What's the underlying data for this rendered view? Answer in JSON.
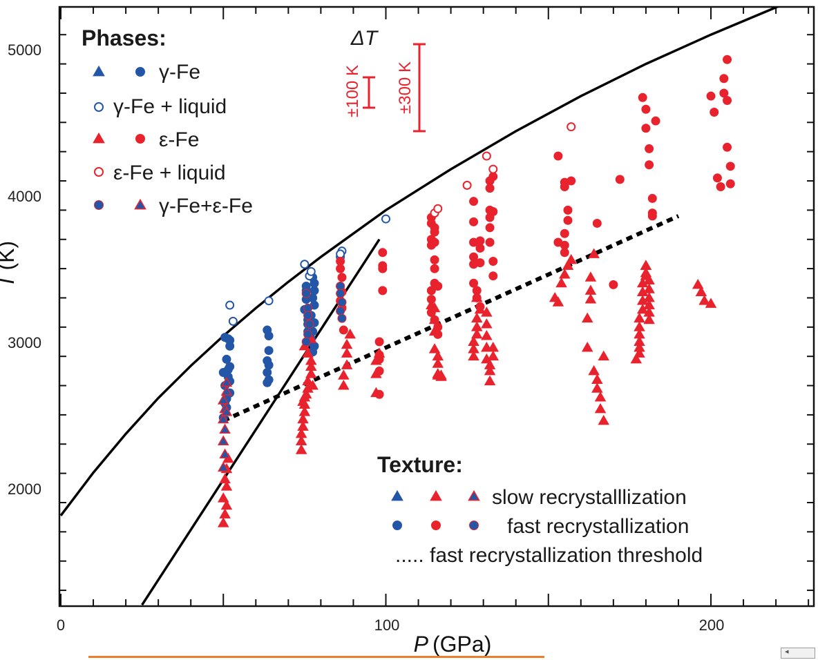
{
  "chart_data": {
    "type": "scatter",
    "xlabel": "P",
    "xlabel_unit": "(GPa)",
    "ylabel": "T",
    "ylabel_unit": "(K)",
    "xlim": [
      0,
      230
    ],
    "ylim": [
      1200,
      5300
    ],
    "x_ticks": [
      "0",
      "100",
      "200"
    ],
    "y_ticks": [
      "2000",
      "3000",
      "4000",
      "5000"
    ],
    "colors": {
      "gamma": "#2456a8",
      "epsilon": "#e8232d",
      "line": "#000000"
    },
    "legend_phases": {
      "title": "Phases:",
      "entries": [
        "γ-Fe",
        "γ-Fe + liquid",
        "ε-Fe",
        "ε-Fe + liquid",
        "γ-Fe+ε-Fe"
      ]
    },
    "legend_texture": {
      "title": "Texture:",
      "slow": "slow recrystalllization",
      "fast": "fast recrystallization",
      "threshold": "..... fast recrystallization threshold"
    },
    "error_bars": {
      "label": "ΔT",
      "small": "±100 K",
      "large": "±300 K"
    },
    "melting_curve": [
      [
        0,
        1811
      ],
      [
        10,
        2105
      ],
      [
        20,
        2370
      ],
      [
        30,
        2615
      ],
      [
        40,
        2835
      ],
      [
        50,
        3040
      ],
      [
        60,
        3230
      ],
      [
        70,
        3410
      ],
      [
        80,
        3580
      ],
      [
        90,
        3740
      ],
      [
        100,
        3900
      ],
      [
        120,
        4180
      ],
      [
        140,
        4440
      ],
      [
        160,
        4680
      ],
      [
        180,
        4900
      ],
      [
        200,
        5100
      ],
      [
        230,
        5380
      ]
    ],
    "gamma_epsilon_boundary": [
      [
        25,
        1200
      ],
      [
        98,
        3700
      ]
    ],
    "fast_threshold": [
      [
        50,
        2460
      ],
      [
        190,
        3860
      ]
    ],
    "series": [
      {
        "phase": "gamma",
        "marker": "circle",
        "fill": true,
        "x": [
          50,
          50.5,
          51,
          50.5,
          51.5,
          52,
          51.5,
          52,
          51,
          52,
          51.5,
          50.5,
          52,
          51,
          50,
          52,
          51,
          63.5,
          64,
          64,
          63.5,
          64,
          63.5,
          64,
          63.5,
          75,
          75.5,
          75.5,
          75.5,
          76,
          76,
          76,
          76.5,
          77.5,
          78,
          78,
          77.5,
          78,
          77,
          78,
          77.5,
          77,
          78,
          77.5
        ],
        "y": [
          2480,
          2580,
          2620,
          2700,
          2760,
          2730,
          2810,
          2830,
          2880,
          2970,
          3020,
          3030,
          3010,
          2610,
          2790,
          2650,
          2550,
          3080,
          3040,
          2940,
          2870,
          2840,
          2790,
          2740,
          2720,
          3220,
          3290,
          3350,
          3380,
          3120,
          3150,
          3070,
          3000,
          3440,
          3400,
          3350,
          3300,
          3250,
          3180,
          3130,
          3070,
          3020,
          2970,
          2930
        ]
      },
      {
        "phase": "gamma",
        "marker": "circle",
        "fill": false,
        "x": [
          52,
          53,
          64,
          75,
          76.5,
          77,
          86,
          86.5,
          86,
          100
        ],
        "y": [
          3250,
          3140,
          3280,
          3530,
          3450,
          3480,
          3580,
          3620,
          3600,
          3840
        ]
      },
      {
        "phase": "epsilon",
        "marker": "circle",
        "fill": true,
        "x": [
          86,
          86,
          86.5,
          86,
          86.5,
          86,
          86.5,
          87,
          98,
          98,
          98,
          98,
          98,
          99,
          99,
          99,
          99,
          114,
          114,
          114,
          114,
          115,
          115,
          115,
          115,
          115,
          115,
          114,
          114,
          114,
          115,
          116,
          116,
          116,
          127,
          127,
          127,
          127,
          127,
          127,
          128,
          128,
          129,
          129,
          129,
          129,
          132,
          132,
          132,
          132,
          132,
          132,
          133,
          133,
          133,
          133,
          155,
          155,
          156,
          156,
          155,
          155,
          155,
          153,
          153,
          157,
          165,
          170,
          172,
          179,
          180,
          180,
          181,
          181,
          182,
          182,
          182,
          183,
          200,
          201,
          202,
          203,
          204,
          204,
          205,
          205,
          205,
          206,
          206
        ],
        "y": [
          3550,
          3500,
          3440,
          3380,
          3340,
          3280,
          3230,
          3080,
          3000,
          2910,
          2880,
          2800,
          2640,
          3350,
          3500,
          3610,
          3520,
          3850,
          3810,
          3700,
          3660,
          3750,
          3780,
          3680,
          3560,
          3500,
          3400,
          3350,
          3290,
          3200,
          3150,
          3100,
          3050,
          3380,
          3960,
          3820,
          3680,
          3580,
          3530,
          3400,
          3350,
          3300,
          3240,
          3690,
          3640,
          3540,
          4100,
          4050,
          3900,
          3850,
          3780,
          3680,
          3550,
          3450,
          4130,
          3890,
          4060,
          4090,
          3900,
          3830,
          3740,
          3660,
          3610,
          3680,
          4270,
          4100,
          3810,
          3390,
          4110,
          4670,
          4590,
          4460,
          4320,
          4210,
          3980,
          3880,
          3860,
          4510,
          4680,
          4570,
          4120,
          4060,
          4700,
          4800,
          4930,
          4650,
          4330,
          4200,
          4080
        ]
      },
      {
        "phase": "epsilon",
        "marker": "circle",
        "fill": false,
        "x": [
          115,
          116,
          125,
          131,
          133,
          157
        ],
        "y": [
          3880,
          3910,
          4070,
          4270,
          4180,
          4470
        ]
      },
      {
        "phase": "epsilon",
        "marker": "triangle",
        "fill": true,
        "x": [
          50,
          50.5,
          51,
          50,
          51,
          50.5,
          51,
          51.5,
          74,
          74,
          74,
          74.5,
          74.5,
          75,
          75,
          75,
          76,
          76,
          77,
          77,
          77,
          76,
          75,
          77,
          77.5,
          75.5,
          74.5,
          87,
          87,
          88,
          88,
          88,
          89,
          97,
          97,
          97,
          98,
          114,
          115,
          115,
          115,
          115,
          116,
          116,
          116,
          116,
          117,
          117,
          127,
          127,
          127,
          128,
          128,
          128,
          129,
          128,
          131,
          131,
          131,
          131,
          131,
          132,
          132,
          132,
          133,
          133,
          152,
          153,
          154,
          155,
          156,
          157,
          162,
          162,
          163,
          163,
          163,
          164,
          164,
          165,
          165,
          166,
          166,
          167,
          167,
          177,
          178,
          178,
          178,
          178,
          178,
          178,
          179,
          179,
          179,
          179,
          180,
          180,
          180,
          180,
          181,
          181,
          181,
          181,
          181,
          181,
          196,
          197,
          198,
          200
        ],
        "y": [
          1760,
          1820,
          1880,
          1930,
          2010,
          2060,
          2130,
          2200,
          2260,
          2320,
          2370,
          2420,
          2470,
          2520,
          2570,
          2620,
          2680,
          2730,
          2780,
          2830,
          2870,
          2920,
          2970,
          3020,
          2700,
          2640,
          2590,
          2700,
          2770,
          2840,
          2920,
          2980,
          3050,
          2650,
          2780,
          2870,
          2920,
          3250,
          3230,
          3150,
          3070,
          2950,
          2900,
          2850,
          2770,
          2780,
          2770,
          2760,
          2900,
          2950,
          3000,
          3050,
          3100,
          3160,
          3220,
          3300,
          3200,
          3120,
          3040,
          2960,
          2880,
          2800,
          2730,
          2840,
          2900,
          2960,
          3300,
          3270,
          3400,
          3460,
          3520,
          3560,
          2960,
          3160,
          3290,
          3350,
          3440,
          3600,
          2800,
          2740,
          2680,
          2620,
          2540,
          2460,
          2900,
          2880,
          2920,
          2960,
          3000,
          3050,
          3100,
          3160,
          3220,
          3280,
          3340,
          3400,
          3450,
          3470,
          3520,
          3520,
          3420,
          3360,
          3300,
          3250,
          3200,
          3150,
          3390,
          3340,
          3280,
          3260
        ]
      },
      {
        "phase": "mixed",
        "marker": "circle",
        "fill": true,
        "x": [
          75.5,
          76,
          76,
          76.5,
          76,
          75.5,
          86,
          86,
          86.5,
          86,
          86.5
        ],
        "y": [
          3330,
          3230,
          3180,
          3120,
          3050,
          3000,
          3380,
          3330,
          3270,
          3210,
          3160
        ]
      },
      {
        "phase": "mixed",
        "marker": "triangle",
        "fill": true,
        "x": [
          50,
          50.5,
          50,
          50.5,
          50,
          50.5,
          50,
          51,
          51,
          51
        ],
        "y": [
          2140,
          2230,
          2320,
          2400,
          2470,
          2540,
          2600,
          2660,
          2720,
          2520
        ]
      }
    ]
  }
}
